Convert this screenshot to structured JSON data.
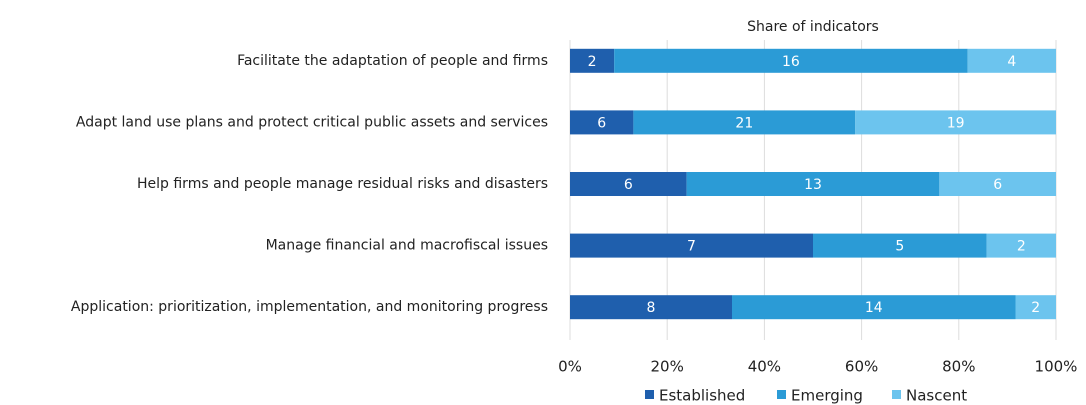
{
  "chart_data": {
    "type": "bar",
    "orientation": "horizontal",
    "stacked": "percent",
    "title": "Share of indicators",
    "categories": [
      "Facilitate the adaptation of people and firms",
      "Adapt land use plans and protect critical public assets and services",
      "Help firms and people manage residual risks and disasters",
      "Manage financial and macrofiscal issues",
      "Application: prioritization, implementation, and monitoring progress"
    ],
    "series": [
      {
        "name": "Established",
        "color": "#1f5fad",
        "values": [
          2,
          6,
          6,
          7,
          8
        ]
      },
      {
        "name": "Emerging",
        "color": "#2b9bd6",
        "values": [
          16,
          21,
          13,
          5,
          14
        ]
      },
      {
        "name": "Nascent",
        "color": "#6cc4ee",
        "values": [
          4,
          19,
          6,
          2,
          2
        ]
      }
    ],
    "xlim": [
      0,
      100
    ],
    "xticks": [
      {
        "value": 0,
        "label": "0%"
      },
      {
        "value": 20,
        "label": "20%"
      },
      {
        "value": 40,
        "label": "40%"
      },
      {
        "value": 60,
        "label": "60%"
      },
      {
        "value": 80,
        "label": "80%"
      },
      {
        "value": 100,
        "label": "100%"
      }
    ],
    "grid": true,
    "legend": "bottom"
  }
}
